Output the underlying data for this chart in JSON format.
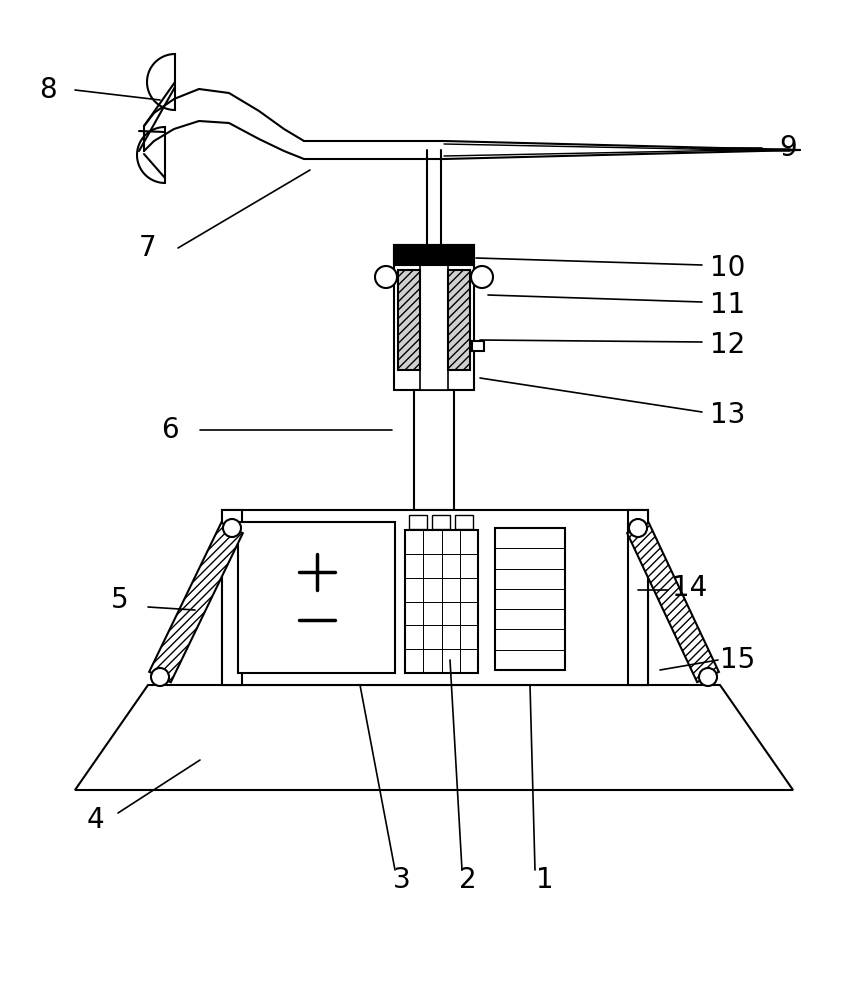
{
  "bg_color": "#ffffff",
  "lw": 1.5,
  "label_fontsize": 20,
  "fig_w": 8.68,
  "fig_h": 10.0,
  "dpi": 100
}
